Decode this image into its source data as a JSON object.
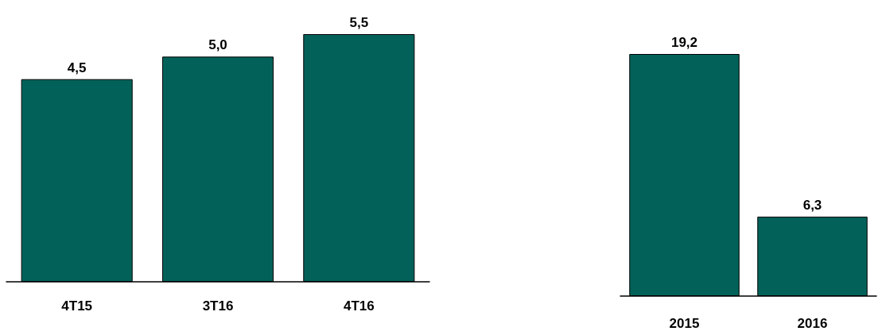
{
  "chart_data": [
    {
      "type": "bar",
      "categories": [
        "4T15",
        "3T16",
        "4T16"
      ],
      "values": [
        4.5,
        5.0,
        5.5
      ],
      "color": "#02625a",
      "value_labels": [
        "4,5",
        "5,0",
        "5,5"
      ]
    },
    {
      "type": "bar",
      "categories": [
        "2015",
        "2016"
      ],
      "values": [
        19.2,
        6.3
      ],
      "color": "#02625a",
      "value_labels": [
        "19,2",
        "6,3"
      ]
    }
  ]
}
